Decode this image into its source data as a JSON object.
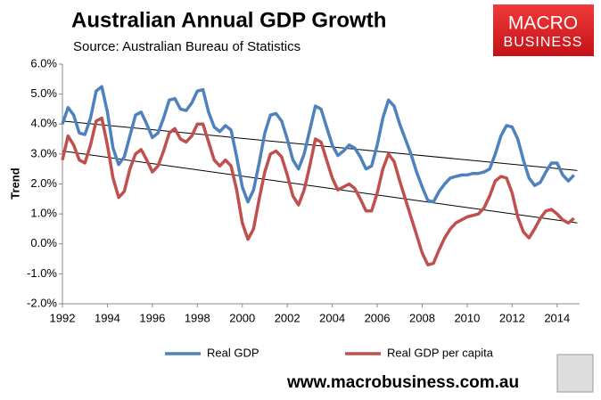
{
  "chart_data": {
    "type": "line",
    "title": "Australian Annual GDP Growth",
    "subtitle": "Source: Australian Bureau of Statistics",
    "y_label": "Trend",
    "logo": [
      "MACRO",
      "BUSINESS"
    ],
    "footer": "www.macrobusiness.com.au",
    "legend": "bottom",
    "x": [
      1992,
      1992.25,
      1992.5,
      1992.75,
      1993,
      1993.25,
      1993.5,
      1993.75,
      1994,
      1994.25,
      1994.5,
      1994.75,
      1995,
      1995.25,
      1995.5,
      1995.75,
      1996,
      1996.25,
      1996.5,
      1996.75,
      1997,
      1997.25,
      1997.5,
      1997.75,
      1998,
      1998.25,
      1998.5,
      1998.75,
      1999,
      1999.25,
      1999.5,
      1999.75,
      2000,
      2000.25,
      2000.5,
      2000.75,
      2001,
      2001.25,
      2001.5,
      2001.75,
      2002,
      2002.25,
      2002.5,
      2002.75,
      2003,
      2003.25,
      2003.5,
      2003.75,
      2004,
      2004.25,
      2004.5,
      2004.75,
      2005,
      2005.25,
      2005.5,
      2005.75,
      2006,
      2006.25,
      2006.5,
      2006.75,
      2007,
      2007.25,
      2007.5,
      2007.75,
      2008,
      2008.25,
      2008.5,
      2008.75,
      2009,
      2009.25,
      2009.5,
      2009.75,
      2010,
      2010.25,
      2010.5,
      2010.75,
      2011,
      2011.25,
      2011.5,
      2011.75,
      2012,
      2012.25,
      2012.5,
      2012.75,
      2013,
      2013.25,
      2013.5,
      2013.75,
      2014,
      2014.25,
      2014.5,
      2014.75
    ],
    "series": [
      {
        "name": "Real GDP",
        "color": "#4f81bd",
        "values": [
          4.0,
          4.55,
          4.3,
          3.7,
          3.65,
          4.2,
          5.1,
          5.25,
          4.4,
          3.2,
          2.65,
          2.9,
          3.6,
          4.3,
          4.4,
          4.0,
          3.55,
          3.7,
          4.2,
          4.8,
          4.85,
          4.5,
          4.45,
          4.7,
          5.1,
          5.15,
          4.4,
          3.9,
          3.75,
          3.95,
          3.8,
          2.9,
          1.9,
          1.4,
          1.8,
          2.7,
          3.7,
          4.3,
          4.35,
          4.1,
          3.5,
          2.8,
          2.5,
          3.0,
          3.8,
          4.6,
          4.5,
          3.9,
          3.3,
          2.95,
          3.1,
          3.3,
          3.2,
          2.9,
          2.5,
          2.6,
          3.3,
          4.2,
          4.8,
          4.6,
          4.0,
          3.5,
          3.0,
          2.4,
          1.9,
          1.45,
          1.4,
          1.75,
          2.0,
          2.2,
          2.25,
          2.3,
          2.3,
          2.35,
          2.35,
          2.4,
          2.5,
          3.0,
          3.6,
          3.95,
          3.9,
          3.5,
          2.8,
          2.2,
          1.95,
          2.05,
          2.4,
          2.7,
          2.7,
          2.3,
          2.1,
          2.3
        ]
      },
      {
        "name": "Real GDP per capita",
        "color": "#c0504d",
        "values": [
          2.8,
          3.6,
          3.3,
          2.8,
          2.7,
          3.3,
          4.1,
          4.2,
          3.3,
          2.2,
          1.55,
          1.75,
          2.5,
          3.0,
          3.15,
          2.8,
          2.4,
          2.6,
          3.1,
          3.7,
          3.85,
          3.5,
          3.4,
          3.6,
          4.0,
          4.0,
          3.4,
          2.8,
          2.6,
          2.8,
          2.6,
          1.8,
          0.7,
          0.15,
          0.5,
          1.5,
          2.4,
          3.0,
          3.1,
          2.9,
          2.3,
          1.6,
          1.3,
          1.8,
          2.6,
          3.5,
          3.4,
          2.8,
          2.2,
          1.8,
          1.9,
          2.0,
          1.85,
          1.5,
          1.1,
          1.1,
          1.7,
          2.5,
          3.0,
          2.75,
          2.1,
          1.5,
          0.9,
          0.3,
          -0.3,
          -0.7,
          -0.65,
          -0.2,
          0.2,
          0.5,
          0.7,
          0.8,
          0.9,
          0.95,
          1.0,
          1.2,
          1.6,
          2.1,
          2.25,
          2.2,
          1.7,
          0.9,
          0.4,
          0.2,
          0.5,
          0.85,
          1.1,
          1.15,
          1.0,
          0.8,
          0.7,
          0.85
        ]
      }
    ],
    "trend_lines": [
      {
        "color": "#000000",
        "x": [
          1992,
          2014.9
        ],
        "values": [
          4.1,
          2.45
        ]
      },
      {
        "color": "#000000",
        "x": [
          1992,
          2014.9
        ],
        "values": [
          3.1,
          0.7
        ]
      }
    ],
    "xlim": [
      1992,
      2015
    ],
    "xticks": [
      1992,
      1994,
      1996,
      1998,
      2000,
      2002,
      2004,
      2006,
      2008,
      2010,
      2012,
      2014
    ],
    "ylim": [
      -2,
      6
    ],
    "yticks": [
      {
        "value": -2,
        "label": "-2.0%"
      },
      {
        "value": -1,
        "label": "-1.0%"
      },
      {
        "value": 0,
        "label": "0.0%"
      },
      {
        "value": 1,
        "label": "1.0%"
      },
      {
        "value": 2,
        "label": "2.0%"
      },
      {
        "value": 3,
        "label": "3.0%"
      },
      {
        "value": 4,
        "label": "4.0%"
      },
      {
        "value": 5,
        "label": "5.0%"
      },
      {
        "value": 6,
        "label": "6.0%"
      }
    ]
  }
}
